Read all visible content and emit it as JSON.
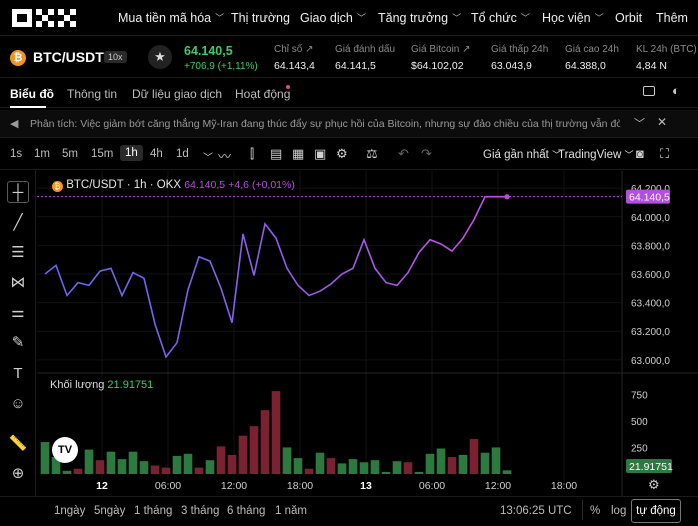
{
  "topnav": {
    "logo": "OKX",
    "items": [
      {
        "label": "Mua tiền mã hóa",
        "chev": true
      },
      {
        "label": "Thị trường",
        "chev": false
      },
      {
        "label": "Giao dịch",
        "chev": true
      },
      {
        "label": "Tăng trưởng",
        "chev": true
      },
      {
        "label": "Tổ chức",
        "chev": true
      },
      {
        "label": "Học viện",
        "chev": true
      },
      {
        "label": "Orbit",
        "chev": false
      },
      {
        "label": "Thêm",
        "chev": false
      }
    ]
  },
  "ticker": {
    "coin_glyph": "₿",
    "pair": "BTC/USDT",
    "leverage": "10x",
    "last_price": "64.140,5",
    "change": "+706,9 (+1,11%)",
    "stats": [
      {
        "label": "Chỉ số",
        "value": "64.143,4",
        "link": true
      },
      {
        "label": "Giá đánh dấu",
        "value": "64.141,5",
        "link": false
      },
      {
        "label": "Giá Bitcoin",
        "value": "$64.102,02",
        "link": true
      },
      {
        "label": "Giá thấp 24h",
        "value": "63.043,9",
        "link": false
      },
      {
        "label": "Giá cao 24h",
        "value": "64.388,0",
        "link": false
      },
      {
        "label": "KL 24h (BTC)",
        "value": "4,84 N",
        "link": false
      }
    ]
  },
  "tabs": [
    "Biểu đồ",
    "Thông tin",
    "Dữ liệu giao dịch",
    "Hoạt động"
  ],
  "news": {
    "text": "Phân tích: Việc giảm bớt căng thẳng Mỹ-Iran đang thúc đẩy sự phục hồi của Bitcoin, nhưng sự đảo chiều của thị trường vẫn đòi hỏi dòng vố..."
  },
  "toolbar": {
    "timeframes": [
      "1s",
      "1m",
      "5m",
      "15m",
      "1h",
      "4h",
      "1d"
    ],
    "selected": "1h",
    "price_type": "Giá gần nhất",
    "chart_engine": "TradingView"
  },
  "legend": {
    "title": "BTC/USDT · 1h · OKX",
    "price": "64.140,5",
    "change": "+4,6 (+0,01%)"
  },
  "volume_label": "Khối lượng",
  "volume_value": "21.91751",
  "colors": {
    "up": "#3dcc6a",
    "down": "#e0505a",
    "vol_up": "#2d7a41",
    "vol_down": "#7a2231",
    "line_start": "#5b6cf0",
    "line_end": "#c84ee6",
    "accent": "#b44ee0"
  },
  "chart_data": {
    "type": "line",
    "title": "BTC/USDT · 1h · OKX",
    "x_ticks": [
      "12",
      "06:00",
      "12:00",
      "18:00",
      "13",
      "06:00",
      "12:00",
      "18:00"
    ],
    "y_ticks": [
      63000,
      63200,
      63400,
      63600,
      63800,
      64000,
      64200
    ],
    "y_tick_labels": [
      "63.000,0",
      "63.200,0",
      "63.400,0",
      "63.600,0",
      "63.800,0",
      "64.000,0",
      "64.200,0"
    ],
    "ylim": [
      62950,
      64250
    ],
    "price_series": {
      "name": "BTC/USDT",
      "values": [
        63600,
        63660,
        63450,
        63540,
        63520,
        63620,
        63640,
        63450,
        63610,
        63570,
        63250,
        63020,
        63120,
        63490,
        63720,
        63690,
        63500,
        63260,
        63880,
        63590,
        63950,
        63850,
        63640,
        63520,
        63450,
        63480,
        63530,
        63600,
        63640,
        63840,
        63640,
        63540,
        63520,
        63610,
        63750,
        63840,
        63810,
        63760,
        63850,
        63980,
        64140,
        64140,
        64140
      ]
    },
    "current_price": "64.140,5",
    "volume_series": {
      "name": "Khối lượng",
      "ylim": [
        0,
        875
      ],
      "y_ticks": [
        250,
        500,
        750
      ],
      "values": [
        300,
        160,
        30,
        50,
        230,
        130,
        210,
        140,
        210,
        120,
        80,
        60,
        170,
        190,
        60,
        130,
        260,
        180,
        360,
        450,
        600,
        780,
        250,
        150,
        50,
        200,
        150,
        100,
        140,
        110,
        130,
        20,
        120,
        110,
        20,
        190,
        240,
        160,
        180,
        330,
        200,
        250,
        35
      ],
      "direction": [
        "u",
        "u",
        "u",
        "d",
        "u",
        "d",
        "u",
        "u",
        "u",
        "u",
        "d",
        "d",
        "u",
        "u",
        "d",
        "u",
        "d",
        "d",
        "d",
        "d",
        "d",
        "d",
        "u",
        "u",
        "d",
        "u",
        "d",
        "u",
        "u",
        "u",
        "u",
        "u",
        "u",
        "d",
        "u",
        "u",
        "u",
        "d",
        "u",
        "d",
        "u",
        "u",
        "u"
      ],
      "last_value": "21.91751"
    }
  },
  "bottom": {
    "ranges": [
      "1ngày",
      "5ngày",
      "1 tháng",
      "3 tháng",
      "6 tháng",
      "1 năm"
    ],
    "clock": "13:06:25 UTC",
    "percent": "%",
    "log": "log",
    "auto": "tự động"
  }
}
